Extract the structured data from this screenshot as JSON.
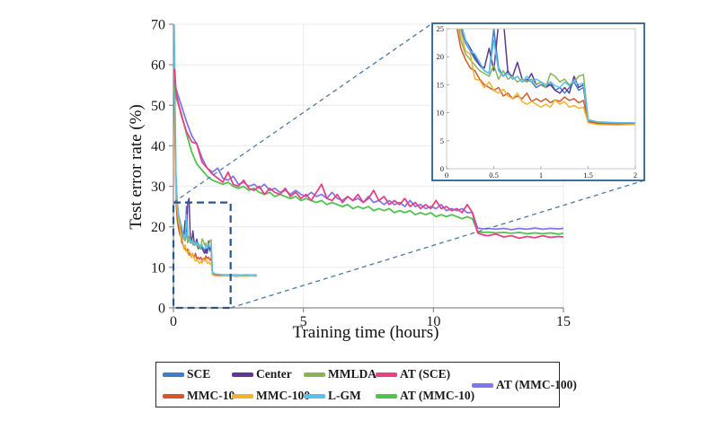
{
  "chart_data": {
    "type": "line",
    "title": "",
    "xlabel": "Training time (hours)",
    "ylabel": "Test error rate (%)",
    "main_axes": {
      "xlim": [
        0,
        15
      ],
      "ylim": [
        0,
        70
      ],
      "xticks": [
        0,
        5,
        10,
        15
      ],
      "yticks": [
        0,
        10,
        20,
        30,
        40,
        50,
        60,
        70
      ],
      "grid": true,
      "legend_position": "below"
    },
    "inset_axes": {
      "xlim": [
        0,
        2
      ],
      "ylim": [
        0,
        25
      ],
      "xticks": [
        0,
        0.5,
        1,
        1.5,
        2
      ],
      "yticks": [
        0,
        5,
        10,
        15,
        20,
        25
      ],
      "grid": false,
      "note": "zoom-in of dashed region, connected by dashed lines"
    },
    "zoom_box": {
      "x0": 0,
      "x1": 2.2,
      "y0": 0,
      "y1": 26
    },
    "x_fast": [
      0.03,
      0.1,
      0.15,
      0.2,
      0.25,
      0.3,
      0.35,
      0.4,
      0.45,
      0.5,
      0.55,
      0.6,
      0.65,
      0.7,
      0.75,
      0.8,
      0.85,
      0.9,
      0.95,
      1.0,
      1.05,
      1.1,
      1.15,
      1.2,
      1.25,
      1.3,
      1.35,
      1.4,
      1.45,
      1.5,
      1.6,
      1.8,
      2.0,
      2.2,
      2.4,
      2.6,
      2.8,
      3.0,
      3.2
    ],
    "x_at": [
      0.05,
      0.1,
      0.3,
      0.5,
      0.7,
      0.9,
      1.1,
      1.3,
      1.5,
      1.7,
      1.9,
      2.1,
      2.3,
      2.5,
      2.7,
      2.9,
      3.1,
      3.3,
      3.5,
      3.7,
      3.9,
      4.1,
      4.3,
      4.5,
      4.7,
      4.9,
      5.1,
      5.3,
      5.5,
      5.7,
      5.9,
      6.1,
      6.3,
      6.5,
      6.7,
      6.9,
      7.1,
      7.3,
      7.5,
      7.7,
      7.9,
      8.1,
      8.3,
      8.5,
      8.7,
      8.9,
      9.1,
      9.3,
      9.5,
      9.7,
      9.9,
      10.1,
      10.3,
      10.5,
      10.7,
      10.9,
      11.1,
      11.3,
      11.5,
      11.7,
      11.9,
      12.1,
      12.4,
      12.7,
      13.0,
      13.3,
      13.6,
      13.9,
      14.2,
      14.5,
      14.8,
      15.0
    ],
    "series": [
      {
        "name": "SCE",
        "color": "#3E7EC8",
        "group": "fast",
        "x_ref": "x_fast",
        "y": [
          57,
          30,
          25,
          22.5,
          21,
          19.5,
          18.5,
          17.5,
          17,
          25,
          18,
          16.5,
          17.5,
          16,
          16.5,
          15.5,
          16,
          15.5,
          14.5,
          15,
          14.5,
          15.5,
          14,
          14.5,
          13.5,
          14.5,
          15.5,
          14,
          14.5,
          8.6,
          8.2,
          8.1,
          8.0,
          8.1,
          7.9,
          8.0,
          7.9,
          8.0,
          7.9
        ]
      },
      {
        "name": "Center",
        "color": "#5F3794",
        "group": "fast",
        "x_ref": "x_fast",
        "y": [
          59,
          32,
          26,
          23,
          21.5,
          20,
          18.5,
          18,
          21.5,
          17.5,
          26,
          27,
          17,
          16.5,
          19,
          16,
          15.5,
          17,
          15,
          15.5,
          14.5,
          15,
          14,
          13.5,
          14.5,
          13.5,
          16.5,
          14.5,
          15,
          8.4,
          8.1,
          8.0,
          7.9,
          8.0,
          7.8,
          7.9,
          7.8,
          7.9,
          7.8
        ]
      },
      {
        "name": "MMLDA",
        "color": "#8DB255",
        "group": "fast",
        "x_ref": "x_fast",
        "y": [
          55,
          28,
          23,
          20.5,
          19.5,
          18.5,
          17.5,
          17,
          16.5,
          18.5,
          16,
          17.5,
          16,
          16.5,
          15.5,
          16,
          15.5,
          16,
          15,
          15.5,
          14.5,
          17,
          16.5,
          15.5,
          16,
          15,
          15.5,
          16.5,
          16.8,
          8.8,
          8.3,
          8.2,
          8.1,
          8.2,
          8.0,
          8.1,
          8.0,
          8.1,
          8.0
        ]
      },
      {
        "name": "MMC-10",
        "color": "#D4572C",
        "group": "fast",
        "x_ref": "x_fast",
        "y": [
          53,
          26,
          21.5,
          19.5,
          18,
          17.5,
          16,
          15,
          14.5,
          14,
          14.5,
          13,
          13.5,
          12.5,
          13,
          12.5,
          13.5,
          12,
          12.5,
          12,
          12.5,
          11.8,
          12.3,
          12,
          12.8,
          12.2,
          12.5,
          11.8,
          12.2,
          8.4,
          8.1,
          8.0,
          8.0,
          7.9,
          8.0,
          7.9,
          8.0,
          7.9,
          7.9
        ]
      },
      {
        "name": "MMC-100",
        "color": "#EFB32F",
        "group": "fast",
        "x_ref": "x_fast",
        "y": [
          62,
          27,
          24.5,
          21,
          20.5,
          16,
          15.8,
          14.5,
          15.5,
          14,
          13.5,
          14.2,
          13,
          12.5,
          13.5,
          12,
          11.5,
          12,
          11.5,
          11,
          11.5,
          11,
          12.3,
          11.5,
          12,
          11,
          11.3,
          10.8,
          11,
          8.2,
          7.9,
          7.8,
          7.9,
          7.8,
          7.9,
          7.8,
          7.8,
          7.9,
          7.8
        ]
      },
      {
        "name": "L-GM",
        "color": "#5BC0E8",
        "group": "fast",
        "x_ref": "x_fast",
        "y": [
          70,
          33,
          26,
          23,
          21,
          20.5,
          19,
          17.5,
          17,
          23,
          17.5,
          16.5,
          17,
          16,
          16.5,
          15.5,
          16.5,
          15.5,
          16,
          15.5,
          15,
          15.5,
          14.8,
          14.5,
          15.5,
          14.8,
          15.8,
          15,
          15.3,
          8.7,
          8.4,
          8.2,
          8.2,
          8.1,
          8.2,
          8.1,
          8.2,
          8.1,
          8.2
        ]
      },
      {
        "name": "AT (MMC-100)",
        "color": "#8177ED",
        "group": "at",
        "x_ref": "x_at",
        "y": [
          56,
          54,
          50,
          46,
          42.5,
          40.5,
          37,
          34.5,
          33.5,
          34.5,
          32,
          31.5,
          32.5,
          30.5,
          31,
          30,
          30.5,
          29.5,
          30.5,
          29,
          29.5,
          28.5,
          29,
          28,
          29,
          28,
          27.5,
          28.5,
          27.5,
          28,
          27,
          28.5,
          27,
          26.5,
          27.5,
          26.5,
          27,
          26,
          27.5,
          26,
          26.5,
          25.5,
          26.5,
          25.5,
          26,
          25,
          26.5,
          25,
          25.5,
          24.5,
          25,
          24.5,
          25.5,
          24,
          24.5,
          24,
          24.5,
          23.5,
          23.5,
          19.7,
          19.5,
          19.6,
          19.4,
          19.6,
          19.3,
          19.6,
          19.4,
          19.7,
          19.4,
          19.6,
          19.5,
          19.6
        ]
      },
      {
        "name": "AT (MMC-10)",
        "color": "#4EC44E",
        "group": "at",
        "x_ref": "x_at",
        "y": [
          55,
          52,
          48,
          43,
          38.5,
          35.5,
          34,
          32.5,
          31.5,
          31,
          30.5,
          31,
          30,
          29.5,
          30,
          29,
          29.5,
          28.5,
          28,
          28.5,
          27.5,
          28,
          27.5,
          27,
          27.5,
          26.5,
          27,
          26.5,
          26,
          26.5,
          25.5,
          26,
          25.5,
          25,
          25.5,
          24.5,
          25,
          24.5,
          25,
          24,
          24.5,
          24,
          24.5,
          23.5,
          24,
          23.5,
          24,
          23,
          23.5,
          23,
          23.5,
          22.5,
          23,
          22.5,
          23,
          22.5,
          22,
          22.5,
          22,
          18.8,
          18.6,
          18.7,
          18.5,
          18.6,
          18.4,
          18.6,
          18.3,
          18.5,
          18.3,
          18.5,
          18.2,
          18.4
        ]
      },
      {
        "name": "AT (SCE)",
        "color": "#E84283",
        "group": "at",
        "x_ref": "x_at",
        "y": [
          59,
          53,
          47.5,
          43.5,
          41,
          40.5,
          36,
          34.5,
          33,
          32,
          31,
          33.5,
          30.5,
          30,
          31.5,
          29.5,
          29,
          30,
          28,
          29.5,
          28.5,
          28,
          29.5,
          27.5,
          28.5,
          27,
          28,
          26.5,
          28.5,
          30.5,
          27,
          26.5,
          28,
          26,
          27.5,
          26.5,
          28,
          26,
          27,
          29,
          26.5,
          27.5,
          25.5,
          26.5,
          25.5,
          27,
          25,
          26,
          24.5,
          25.5,
          24.5,
          26.5,
          24.5,
          25,
          24,
          24.5,
          23.5,
          25.5,
          23.5,
          18.5,
          18,
          17.8,
          18.2,
          17.5,
          17.8,
          17.2,
          17.6,
          17.3,
          17.8,
          17.4,
          17.6,
          17.5
        ]
      }
    ],
    "annotation_colors": {
      "zoom_box": "#2B5685",
      "connector": "#4C79A9",
      "inset_frame": "#2F5F8F",
      "grid": "#ebebeb",
      "axis": "#8a8a8a",
      "tick_text": "#1a1a1a"
    }
  },
  "legend": {
    "rows": [
      [
        {
          "label": "SCE",
          "color": "#3E7EC8",
          "dx": 7
        },
        {
          "label": "Center",
          "color": "#5F3794",
          "dx": 84
        },
        {
          "label": "MMLDA",
          "color": "#8DB255",
          "dx": 164
        },
        {
          "label": "AT (SCE)",
          "color": "#E84283",
          "dx": 244
        }
      ],
      [
        {
          "label": "MMC-10",
          "color": "#D4572C",
          "dx": 7
        },
        {
          "label": "MMC-100",
          "color": "#EFB32F",
          "dx": 84
        },
        {
          "label": "L-GM",
          "color": "#5BC0E8",
          "dx": 164
        },
        {
          "label": "AT (MMC-10)",
          "color": "#4EC44E",
          "dx": 244
        }
      ]
    ],
    "side_item": {
      "label": "AT (MMC-100)",
      "color": "#8177ED",
      "dx": 351
    }
  }
}
